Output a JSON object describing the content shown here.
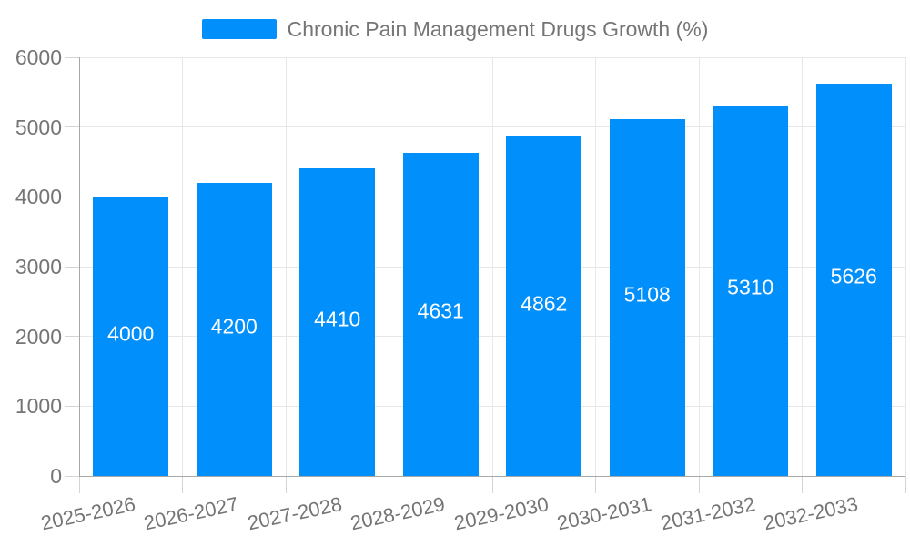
{
  "chart_data": {
    "type": "bar",
    "title": "Chronic Pain Management Drugs Growth (%)",
    "categories": [
      "2025-2026",
      "2026-2027",
      "2027-2028",
      "2028-2029",
      "2029-2030",
      "2030-2031",
      "2031-2032",
      "2032-2033"
    ],
    "values": [
      4000,
      4200,
      4410,
      4631,
      4862,
      5108,
      5310,
      5626
    ],
    "xlabel": "",
    "ylabel": "",
    "ylim": [
      0,
      6000
    ],
    "yticks": [
      0,
      1000,
      2000,
      3000,
      4000,
      5000,
      6000
    ],
    "grid": true,
    "legend_position": "top",
    "data_labels": "inside-center",
    "colors": {
      "bar": "#008FFB",
      "data_label": "#ffffff",
      "axis_label": "#757575",
      "gridline": "#e7e7e7",
      "axis_line": "#a8a8a8",
      "tick": "#d4d4d4",
      "background": "#ffffff"
    }
  }
}
